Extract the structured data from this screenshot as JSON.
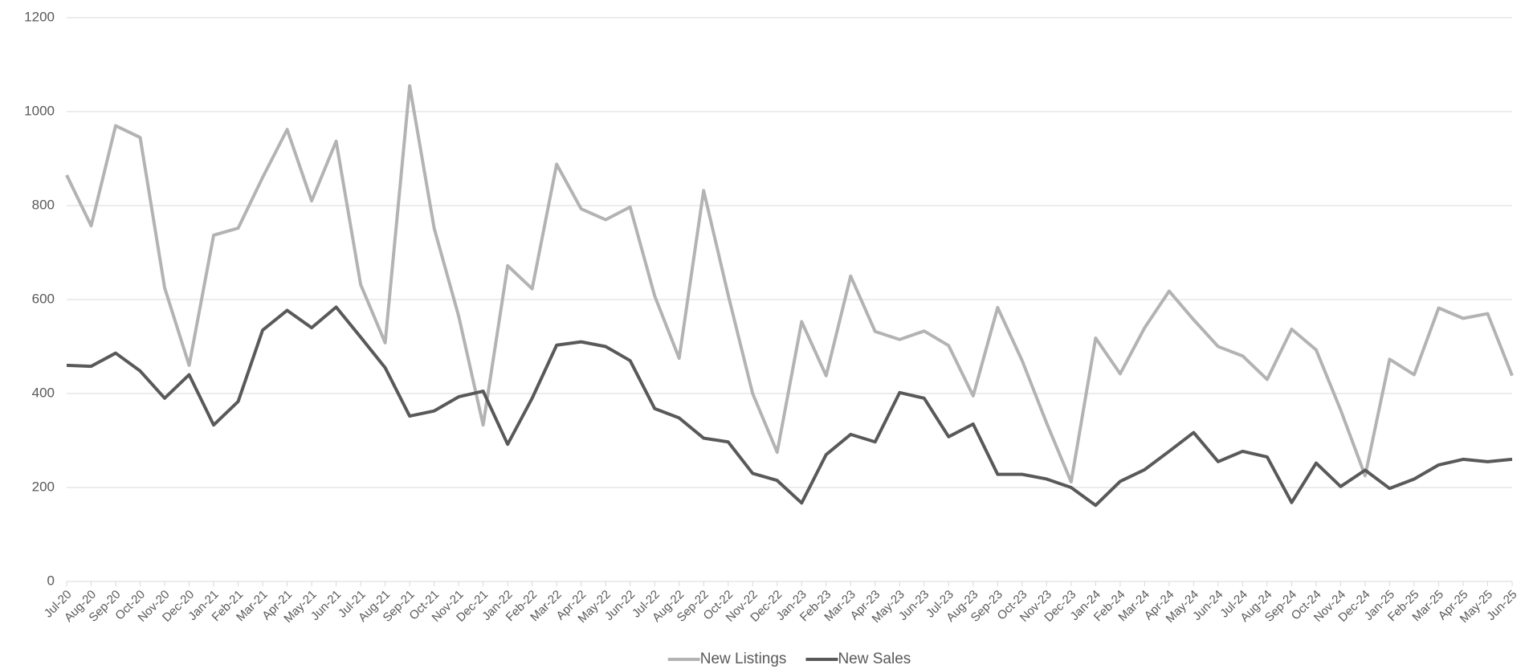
{
  "chart_data": {
    "type": "line",
    "categories": [
      "Jul-20",
      "Aug-20",
      "Sep-20",
      "Oct-20",
      "Nov-20",
      "Dec-20",
      "Jan-21",
      "Feb-21",
      "Mar-21",
      "Apr-21",
      "May-21",
      "Jun-21",
      "Jul-21",
      "Aug-21",
      "Sep-21",
      "Oct-21",
      "Nov-21",
      "Dec-21",
      "Jan-22",
      "Feb-22",
      "Mar-22",
      "Apr-22",
      "May-22",
      "Jun-22",
      "Jul-22",
      "Aug-22",
      "Sep-22",
      "Oct-22",
      "Nov-22",
      "Dec-22",
      "Jan-23",
      "Feb-23",
      "Mar-23",
      "Apr-23",
      "May-23",
      "Jun-23",
      "Jul-23",
      "Aug-23",
      "Sep-23",
      "Oct-23",
      "Nov-23",
      "Dec-23",
      "Jan-24",
      "Feb-24",
      "Mar-24",
      "Apr-24",
      "May-24",
      "Jun-24",
      "Jul-24",
      "Aug-24",
      "Sep-24",
      "Oct-24",
      "Nov-24",
      "Dec-24",
      "Jan-25",
      "Feb-25",
      "Mar-25",
      "Apr-25",
      "May-25",
      "Jun-25"
    ],
    "series": [
      {
        "name": "New Listings",
        "color": "#b3b3b3",
        "values": [
          865,
          757,
          970,
          945,
          625,
          460,
          737,
          752,
          860,
          962,
          810,
          937,
          632,
          508,
          1055,
          752,
          565,
          333,
          672,
          623,
          888,
          793,
          770,
          797,
          608,
          475,
          832,
          610,
          400,
          275,
          553,
          438,
          650,
          532,
          515,
          533,
          502,
          395,
          583,
          470,
          337,
          212,
          518,
          442,
          540,
          618,
          557,
          500,
          480,
          430,
          537,
          493,
          365,
          225,
          473,
          440,
          582,
          560,
          570,
          438
        ]
      },
      {
        "name": "New Sales",
        "color": "#595959",
        "values": [
          460,
          458,
          486,
          448,
          390,
          440,
          333,
          383,
          535,
          577,
          540,
          584,
          520,
          455,
          352,
          363,
          393,
          405,
          292,
          390,
          503,
          510,
          500,
          470,
          368,
          348,
          305,
          297,
          230,
          215,
          167,
          270,
          313,
          297,
          402,
          390,
          308,
          335,
          228,
          228,
          218,
          200,
          162,
          213,
          238,
          277,
          317,
          255,
          277,
          265,
          168,
          252,
          202,
          237,
          198,
          218,
          248,
          260,
          255,
          260
        ]
      }
    ],
    "ylim": [
      0,
      1200
    ],
    "yticks": [
      0,
      200,
      400,
      600,
      800,
      1000,
      1200
    ],
    "grid": true,
    "legend": "bottom"
  }
}
